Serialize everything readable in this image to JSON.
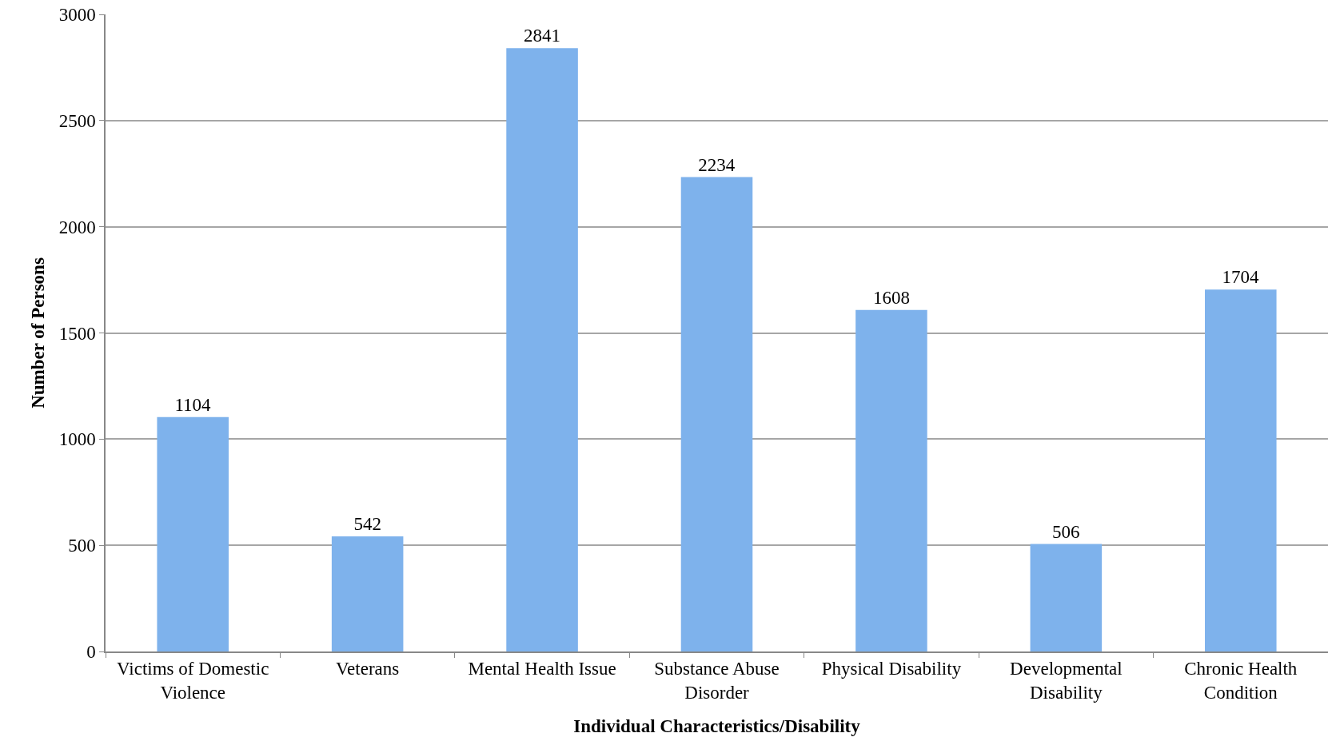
{
  "chart_data": {
    "type": "bar",
    "xlabel": "Individual Characteristics/Disability",
    "ylabel": "Number of Persons",
    "categories": [
      "Victims of Domestic Violence",
      "Veterans",
      "Mental Health Issue",
      "Substance Abuse Disorder",
      "Physical Disability",
      "Developmental Disability",
      "Chronic Health Condition"
    ],
    "values": [
      1104,
      542,
      2841,
      2234,
      1608,
      506,
      1704
    ],
    "color": "#7eb2ec",
    "ylim": [
      0,
      3000
    ],
    "yticks": [
      0,
      500,
      1000,
      1500,
      2000,
      2500,
      3000
    ],
    "grid": "y",
    "data_labels": true
  }
}
